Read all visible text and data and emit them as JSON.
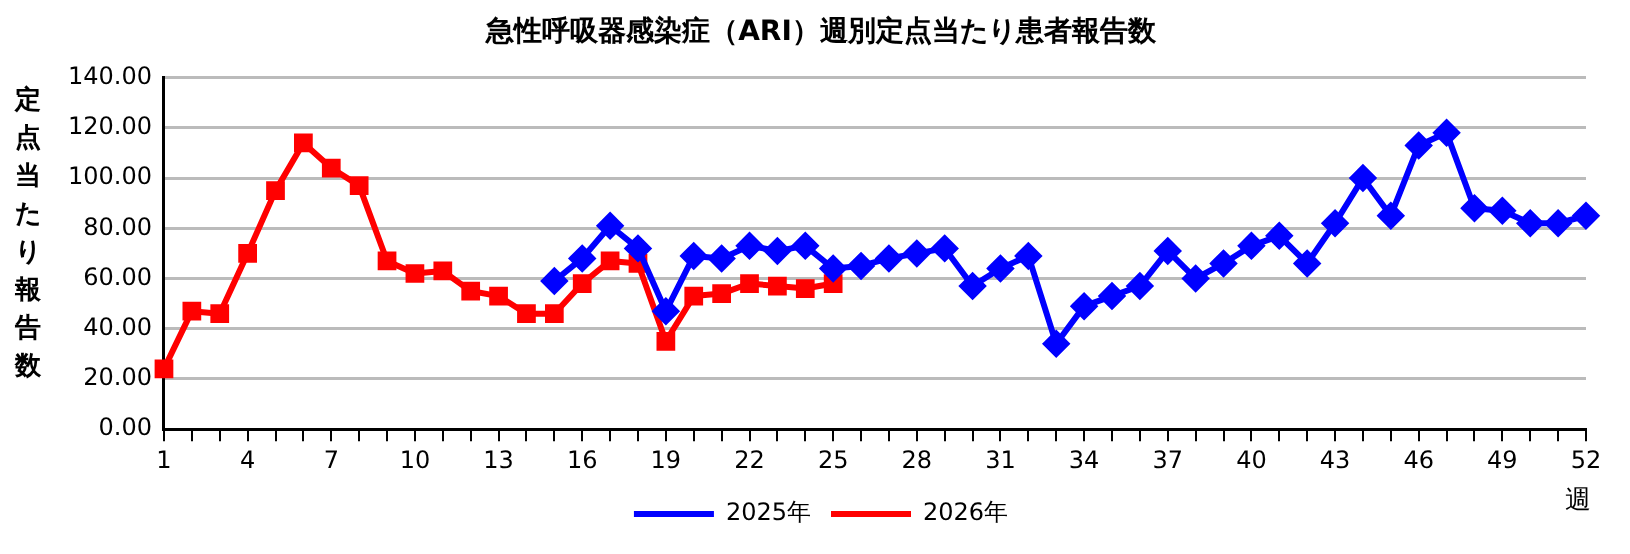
{
  "chart_data": {
    "type": "line",
    "title": "急性呼吸器感染症（ARI）週別定点当たり患者報告数",
    "xlabel": "週",
    "ylabel": "定点当たり報告数",
    "categories": [
      "1",
      null,
      null,
      "4",
      null,
      null,
      "7",
      null,
      null,
      "10",
      null,
      null,
      "13",
      null,
      null,
      "16",
      null,
      null,
      "19",
      null,
      null,
      "22",
      null,
      null,
      "25",
      null,
      null,
      "28",
      null,
      null,
      "31",
      null,
      null,
      "34",
      null,
      null,
      "37",
      null,
      null,
      "40",
      null,
      null,
      "43",
      null,
      null,
      "46",
      null,
      null,
      "49",
      null,
      null,
      "52"
    ],
    "series": [
      {
        "name": "2025年",
        "color": "#0000ff",
        "marker": "diamond",
        "values": [
          null,
          null,
          null,
          null,
          null,
          null,
          null,
          null,
          null,
          null,
          null,
          null,
          null,
          null,
          59,
          68,
          81,
          72,
          47,
          69,
          68,
          73,
          71,
          73,
          64,
          65,
          68,
          70,
          72,
          57,
          64,
          69,
          34,
          49,
          53,
          57,
          71,
          60,
          66,
          73,
          77,
          66,
          82,
          100,
          85,
          113,
          118,
          88,
          87,
          82,
          82,
          85
        ]
      },
      {
        "name": "2026年",
        "color": "#ff0000",
        "marker": "square",
        "values": [
          24,
          47,
          46,
          70,
          95,
          114,
          104,
          97,
          67,
          62,
          63,
          55,
          53,
          46,
          46,
          58,
          67,
          66,
          35,
          53,
          54,
          58,
          57,
          56,
          58,
          null,
          null,
          null,
          null,
          null,
          null,
          null,
          null,
          null,
          null,
          null,
          null,
          null,
          null,
          null,
          null,
          null,
          null,
          null,
          null,
          null,
          null,
          null,
          null,
          null,
          null,
          null
        ]
      }
    ],
    "ylim": [
      0,
      140
    ],
    "yticks": [
      {
        "value": 0,
        "label": "0.00"
      },
      {
        "value": 20,
        "label": "20.00"
      },
      {
        "value": 40,
        "label": "40.00"
      },
      {
        "value": 60,
        "label": "60.00"
      },
      {
        "value": 80,
        "label": "80.00"
      },
      {
        "value": 100,
        "label": "100.00"
      },
      {
        "value": 120,
        "label": "120.00"
      },
      {
        "value": 140,
        "label": "140.00"
      }
    ],
    "grid": "y",
    "legend": "bottom"
  }
}
